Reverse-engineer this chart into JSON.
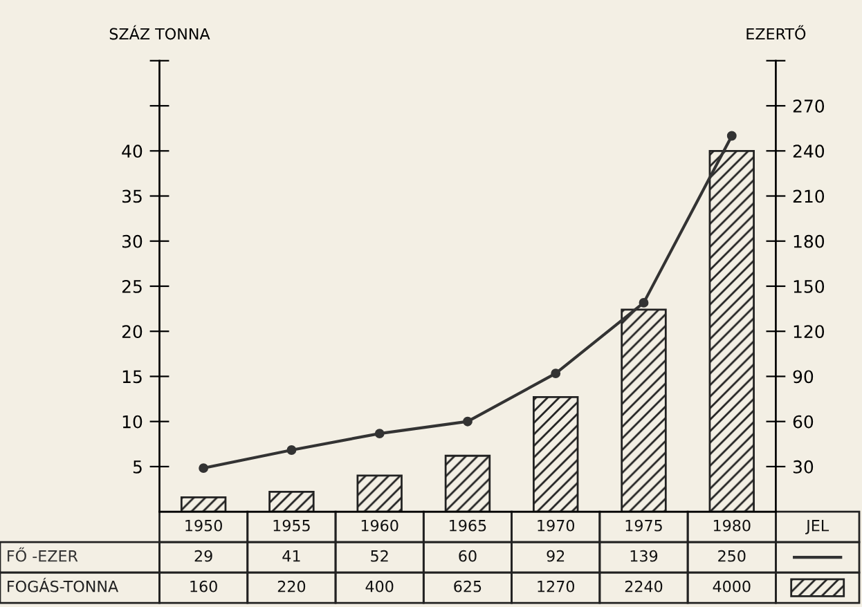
{
  "chart_data": {
    "type": "bar",
    "ylabel": "SZÁZ TONNA",
    "y2label": "EZERTŐ",
    "categories": [
      "1950",
      "1955",
      "1960",
      "1965",
      "1970",
      "1975",
      "1980"
    ],
    "series": [
      {
        "name": "FŐ -EZER",
        "type": "line",
        "axis": "y2",
        "color": "#333333",
        "marker": "circle",
        "values": [
          29,
          41,
          52,
          60,
          92,
          139,
          250
        ],
        "value_labels": [
          "29",
          "41",
          "52",
          "60",
          "92",
          "139",
          "250"
        ]
      },
      {
        "name": "FOGÁS-TONNA",
        "color": "#222222",
        "values": [
          1.6,
          2.2,
          4.0,
          6.2,
          12.7,
          22.4,
          40
        ]
      }
    ],
    "annotations": [
      "160",
      "220",
      "400",
      "625",
      "1270",
      "2240",
      "4000"
    ],
    "legend_title": "JEL",
    "legend": "bottom left",
    "ylim": [
      0,
      50
    ],
    "yticks": [
      5,
      10,
      15,
      20,
      25,
      30,
      35,
      40,
      {
        "value": 45,
        "label": null
      },
      {
        "value": 50,
        "label": null
      }
    ],
    "y2lim": [
      0,
      300
    ],
    "y2ticks": [
      30,
      60,
      90,
      120,
      150,
      180,
      210,
      240,
      270,
      {
        "value": 300,
        "label": null
      }
    ],
    "grid": false
  }
}
